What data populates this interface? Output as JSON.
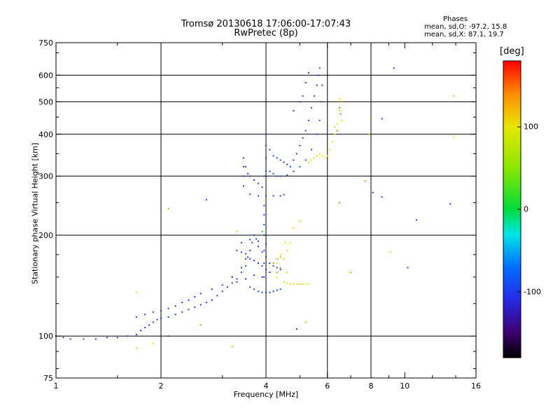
{
  "chart_data": {
    "type": "scatter",
    "title": "Tromsø 20130618 17:06:00-17:07:43",
    "subtitle": "RwPretec (8p)",
    "xlabel": "Frequency [MHz]",
    "ylabel": "Stationary phase Virtual Height [km]",
    "x_scale": "log",
    "y_scale": "log",
    "xlim": [
      1,
      16
    ],
    "ylim": [
      75,
      750
    ],
    "x_ticks": [
      1,
      2,
      4,
      6,
      8,
      10,
      16
    ],
    "y_ticks": [
      75,
      100,
      200,
      300,
      400,
      500,
      600,
      750
    ],
    "x_gridlines": [
      2,
      4,
      6,
      8
    ],
    "y_gridlines": [
      100,
      200,
      300,
      400,
      500,
      600
    ],
    "grid": true,
    "phases": {
      "title": "Phases",
      "o_label": "mean, sd,O:  -97.2, 15.8",
      "x_label": "mean, sd,X:  87.1, 19.7"
    },
    "colorbar": {
      "title": "[deg]",
      "range": [
        -180,
        180
      ],
      "ticks": [
        100,
        0,
        -100
      ]
    },
    "series": [
      {
        "trace": "o-low",
        "color_phase": -97,
        "points": [
          [
            1.0,
            100
          ],
          [
            1.05,
            99
          ],
          [
            1.1,
            98
          ],
          [
            1.2,
            98
          ],
          [
            1.3,
            98
          ],
          [
            1.4,
            99
          ],
          [
            1.5,
            99
          ],
          [
            1.6,
            100
          ],
          [
            1.7,
            101
          ],
          [
            1.75,
            104
          ],
          [
            1.8,
            106
          ],
          [
            1.85,
            108
          ],
          [
            1.9,
            110
          ],
          [
            1.95,
            112
          ],
          [
            2.0,
            113
          ],
          [
            2.1,
            114
          ],
          [
            2.2,
            116
          ],
          [
            2.3,
            118
          ],
          [
            2.4,
            120
          ],
          [
            2.5,
            122
          ],
          [
            2.6,
            124
          ],
          [
            2.7,
            126
          ],
          [
            2.8,
            128
          ],
          [
            2.9,
            132
          ],
          [
            3.0,
            136
          ],
          [
            3.1,
            140
          ],
          [
            3.2,
            144
          ],
          [
            3.3,
            148
          ],
          [
            3.4,
            155
          ],
          [
            3.5,
            162
          ],
          [
            3.55,
            172
          ],
          [
            3.6,
            180
          ],
          [
            3.65,
            190
          ],
          [
            3.7,
            200
          ],
          [
            3.75,
            195
          ],
          [
            3.8,
            185
          ],
          [
            3.9,
            178
          ],
          [
            4.0,
            172
          ],
          [
            4.1,
            165
          ],
          [
            4.2,
            162
          ],
          [
            4.3,
            160
          ],
          [
            4.4,
            158
          ]
        ]
      },
      {
        "trace": "o-low-upper",
        "color_phase": -100,
        "points": [
          [
            1.7,
            114
          ],
          [
            1.8,
            116
          ],
          [
            1.9,
            118
          ],
          [
            2.0,
            119
          ],
          [
            2.1,
            121
          ],
          [
            2.2,
            123
          ],
          [
            2.3,
            126
          ],
          [
            2.4,
            128
          ],
          [
            2.5,
            131
          ],
          [
            2.6,
            134
          ],
          [
            2.8,
            138
          ],
          [
            3.0,
            142
          ],
          [
            3.2,
            150
          ],
          [
            3.4,
            160
          ],
          [
            3.5,
            170
          ]
        ]
      },
      {
        "trace": "o-mid-lower",
        "color_phase": -95,
        "points": [
          [
            3.6,
            140
          ],
          [
            3.7,
            138
          ],
          [
            3.8,
            136
          ],
          [
            3.9,
            135
          ],
          [
            4.0,
            135
          ],
          [
            4.1,
            135
          ],
          [
            4.2,
            136
          ],
          [
            4.3,
            137
          ],
          [
            4.4,
            138
          ]
        ]
      },
      {
        "trace": "o-spread",
        "color_phase": -105,
        "points": [
          [
            3.3,
            180
          ],
          [
            3.4,
            178
          ],
          [
            3.5,
            176
          ],
          [
            3.6,
            170
          ],
          [
            3.7,
            168
          ],
          [
            3.8,
            165
          ],
          [
            3.9,
            162
          ],
          [
            4.0,
            158
          ],
          [
            4.1,
            155
          ],
          [
            3.2,
            150
          ],
          [
            3.3,
            145
          ],
          [
            3.5,
            148
          ],
          [
            3.7,
            152
          ],
          [
            3.9,
            150
          ],
          [
            3.4,
            190
          ],
          [
            3.6,
            194
          ],
          [
            3.8,
            192
          ],
          [
            4.0,
            188
          ]
        ]
      },
      {
        "trace": "o-steep-3.9",
        "color_phase": -95,
        "points": [
          [
            3.95,
            150
          ],
          [
            3.95,
            165
          ],
          [
            3.95,
            180
          ],
          [
            3.95,
            200
          ],
          [
            3.95,
            215
          ],
          [
            3.95,
            230
          ],
          [
            3.95,
            245
          ]
        ]
      },
      {
        "trace": "o-high-flat",
        "color_phase": -98,
        "points": [
          [
            3.6,
            265
          ],
          [
            3.8,
            262
          ],
          [
            4.0,
            262
          ],
          [
            4.2,
            262
          ],
          [
            4.4,
            262
          ],
          [
            4.5,
            264
          ]
        ]
      },
      {
        "trace": "o-high-vertical",
        "color_phase": -100,
        "points": [
          [
            3.45,
            280
          ],
          [
            3.45,
            300
          ],
          [
            3.45,
            320
          ],
          [
            3.45,
            340
          ],
          [
            3.5,
            320
          ],
          [
            3.55,
            305
          ],
          [
            3.6,
            300
          ],
          [
            3.7,
            292
          ],
          [
            3.8,
            285
          ],
          [
            3.9,
            278
          ]
        ]
      },
      {
        "trace": "o-high-upper",
        "color_phase": -96,
        "points": [
          [
            3.95,
            300
          ],
          [
            4.0,
            310
          ],
          [
            4.0,
            340
          ],
          [
            4.0,
            370
          ],
          [
            4.0,
            400
          ],
          [
            4.1,
            360
          ],
          [
            4.2,
            345
          ],
          [
            4.3,
            340
          ],
          [
            4.4,
            335
          ],
          [
            4.5,
            330
          ],
          [
            4.6,
            325
          ],
          [
            4.7,
            320
          ],
          [
            4.8,
            335
          ],
          [
            4.9,
            350
          ],
          [
            5.0,
            370
          ],
          [
            5.1,
            390
          ],
          [
            5.2,
            410
          ],
          [
            5.3,
            440
          ],
          [
            5.4,
            480
          ],
          [
            5.5,
            520
          ],
          [
            5.6,
            560
          ],
          [
            5.65,
            600
          ],
          [
            5.7,
            630
          ]
        ]
      },
      {
        "trace": "o-high-lower",
        "color_phase": -92,
        "points": [
          [
            4.1,
            310
          ],
          [
            4.2,
            305
          ],
          [
            4.3,
            300
          ],
          [
            4.4,
            300
          ],
          [
            4.6,
            302
          ],
          [
            4.8,
            310
          ],
          [
            5.0,
            320
          ],
          [
            5.2,
            335
          ],
          [
            5.4,
            360
          ],
          [
            5.6,
            400
          ],
          [
            5.7,
            440
          ],
          [
            5.75,
            500
          ],
          [
            5.8,
            560
          ]
        ]
      },
      {
        "trace": "o-high-top",
        "color_phase": -100,
        "points": [
          [
            4.8,
            470
          ],
          [
            5.0,
            500
          ],
          [
            5.1,
            520
          ],
          [
            5.2,
            570
          ],
          [
            5.3,
            610
          ]
        ]
      },
      {
        "trace": "x-mid",
        "color_phase": 95,
        "points": [
          [
            4.5,
            145
          ],
          [
            4.6,
            144
          ],
          [
            4.7,
            143
          ],
          [
            4.8,
            143
          ],
          [
            4.9,
            143
          ],
          [
            5.0,
            143
          ],
          [
            5.1,
            143
          ],
          [
            5.2,
            143
          ],
          [
            5.3,
            143
          ],
          [
            4.3,
            150
          ],
          [
            4.4,
            160
          ],
          [
            4.5,
            170
          ],
          [
            4.6,
            180
          ],
          [
            4.55,
            190
          ],
          [
            4.4,
            175
          ],
          [
            4.3,
            165
          ],
          [
            4.6,
            155
          ]
        ]
      },
      {
        "trace": "x-mid-orange",
        "color_phase": 140,
        "points": [
          [
            4.2,
            165
          ],
          [
            4.3,
            170
          ],
          [
            4.4,
            172
          ],
          [
            4.4,
            160
          ],
          [
            4.3,
            155
          ]
        ]
      },
      {
        "trace": "x-high",
        "color_phase": 95,
        "points": [
          [
            5.3,
            330
          ],
          [
            5.4,
            335
          ],
          [
            5.5,
            340
          ],
          [
            5.6,
            345
          ],
          [
            5.7,
            350
          ],
          [
            5.8,
            345
          ],
          [
            5.9,
            340
          ],
          [
            6.0,
            345
          ],
          [
            6.1,
            360
          ],
          [
            6.2,
            380
          ],
          [
            6.3,
            400
          ],
          [
            6.4,
            430
          ],
          [
            6.5,
            470
          ],
          [
            6.5,
            510
          ],
          [
            6.6,
            440
          ],
          [
            6.3,
            420
          ]
        ]
      },
      {
        "trace": "x-high-orange",
        "color_phase": 150,
        "points": [
          [
            6.5,
            480
          ],
          [
            6.6,
            500
          ],
          [
            6.55,
            460
          ],
          [
            6.4,
            410
          ]
        ]
      },
      {
        "trace": "scatter-noise",
        "color_phase": 0,
        "points": [
          [
            9.3,
            630
          ],
          [
            13.8,
            520
          ],
          [
            13.8,
            395
          ],
          [
            8.6,
            445
          ],
          [
            7.9,
            400
          ],
          [
            7.7,
            290
          ],
          [
            8.1,
            268
          ],
          [
            8.6,
            260
          ],
          [
            6.5,
            250
          ],
          [
            10.8,
            222
          ],
          [
            13.5,
            248
          ],
          [
            9.1,
            178
          ],
          [
            10.2,
            160
          ],
          [
            4.9,
            105
          ],
          [
            5.2,
            110
          ],
          [
            7.0,
            155
          ],
          [
            2.1,
            240
          ],
          [
            2.7,
            255
          ],
          [
            3.3,
            205
          ],
          [
            2.6,
            108
          ],
          [
            2.1,
            100
          ],
          [
            1.9,
            95
          ],
          [
            1.7,
            92
          ],
          [
            3.2,
            93
          ],
          [
            1.7,
            135
          ],
          [
            4.8,
            210
          ],
          [
            5.0,
            220
          ],
          [
            3.9,
            205
          ],
          [
            4.7,
            190
          ]
        ]
      }
    ]
  }
}
